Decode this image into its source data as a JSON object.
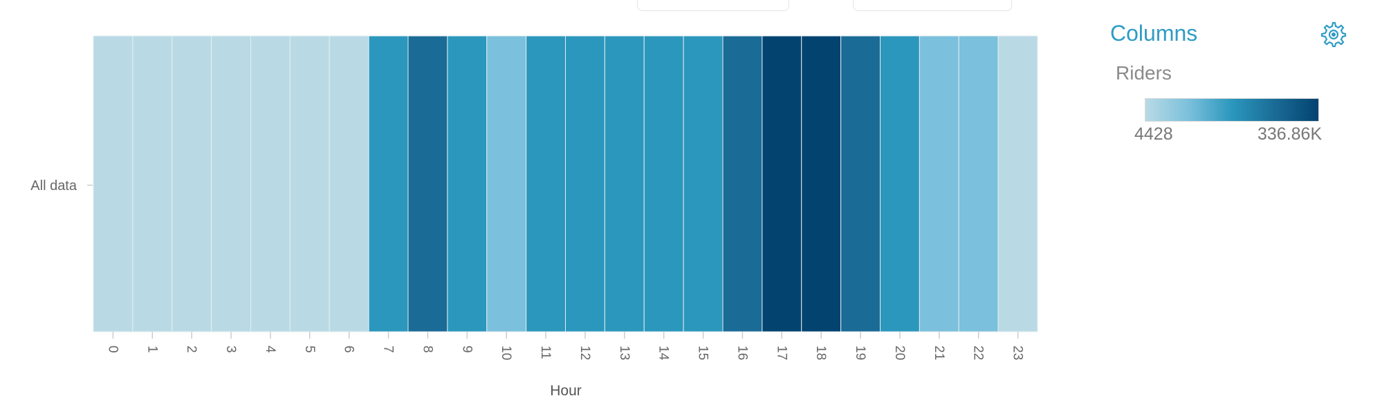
{
  "chart_data": {
    "type": "heatmap",
    "xlabel": "Hour",
    "x": [
      "0",
      "1",
      "2",
      "3",
      "4",
      "5",
      "6",
      "7",
      "8",
      "9",
      "10",
      "11",
      "12",
      "13",
      "14",
      "15",
      "16",
      "17",
      "18",
      "19",
      "20",
      "21",
      "22",
      "23"
    ],
    "y": [
      "All data"
    ],
    "levels": [
      0,
      0,
      0,
      0,
      0,
      0,
      0,
      2,
      3,
      2,
      1,
      2,
      2,
      2,
      2,
      2,
      3,
      4,
      4,
      3,
      2,
      1,
      1,
      0
    ],
    "palette": [
      "#b9dae5",
      "#7bc0dc",
      "#2b97bd",
      "#1a6b96",
      "#034370"
    ]
  },
  "panel": {
    "title": "Columns",
    "settings_icon": "gear-icon"
  },
  "legend": {
    "title": "Riders",
    "min_label": "4428",
    "max_label": "336.86K"
  }
}
